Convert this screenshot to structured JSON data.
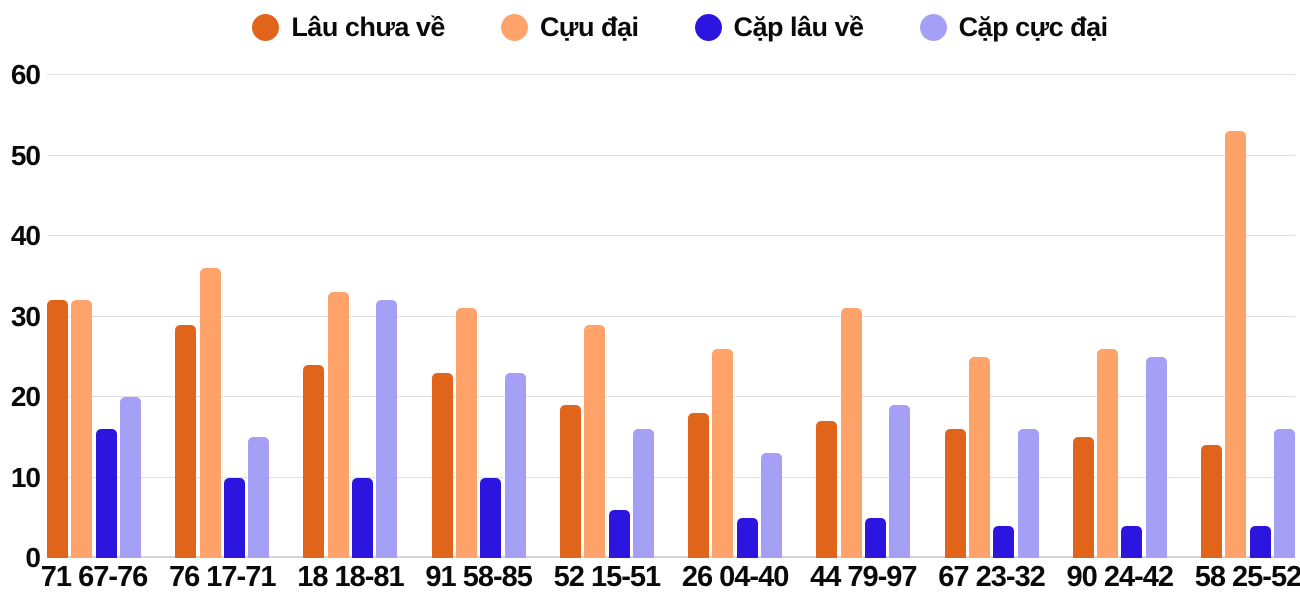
{
  "chart_data": {
    "type": "bar",
    "title": "",
    "legend_position": "top",
    "grid": true,
    "categories": [
      "71 67-76",
      "76 17-71",
      "18 18-81",
      "91 58-85",
      "52 15-51",
      "26 04-40",
      "44 79-97",
      "67 23-32",
      "90 24-42",
      "58 25-52"
    ],
    "series": [
      {
        "name": "Lâu chưa về",
        "color": "#E0641A",
        "values": [
          32,
          29,
          24,
          23,
          19,
          18,
          17,
          16,
          15,
          14
        ]
      },
      {
        "name": "Cựu đại",
        "color": "#FFA36B",
        "values": [
          32,
          36,
          33,
          31,
          29,
          26,
          31,
          25,
          26,
          53
        ]
      },
      {
        "name": "Cặp lâu về",
        "color": "#2C16DF",
        "values": [
          16,
          10,
          10,
          10,
          6,
          5,
          5,
          4,
          4,
          4
        ]
      },
      {
        "name": "Cặp cực đại",
        "color": "#A5A0F6",
        "values": [
          20,
          15,
          32,
          23,
          16,
          13,
          19,
          16,
          25,
          16
        ]
      }
    ],
    "y_axis": {
      "min": 0,
      "max": 60,
      "ticks": [
        0,
        10,
        20,
        30,
        40,
        50,
        60
      ]
    },
    "colors": {
      "grid": "#E0E0E0",
      "axis_line": "#D6D6D6",
      "text": "#0A0A0A",
      "background": "#FFFFFF"
    }
  }
}
